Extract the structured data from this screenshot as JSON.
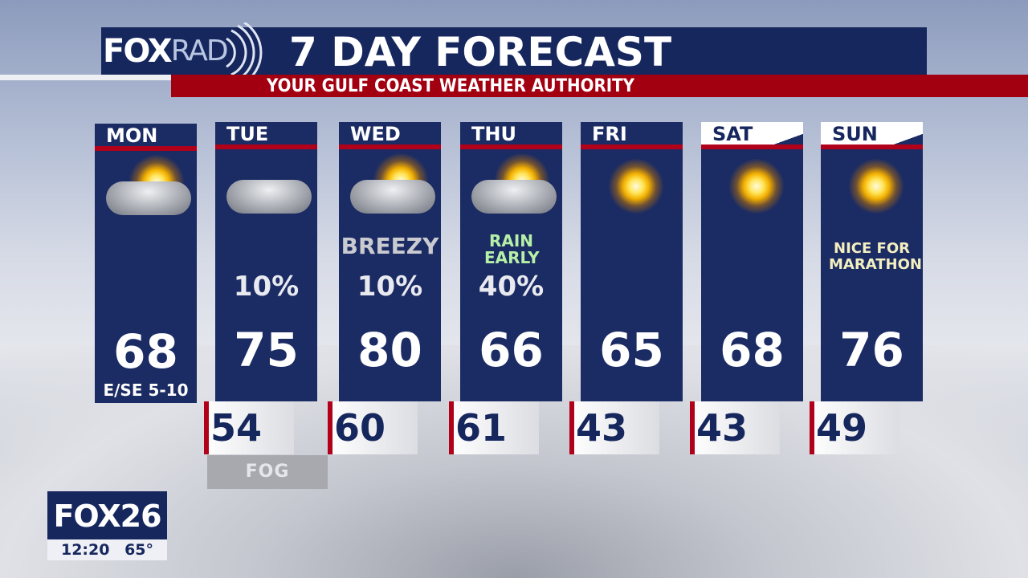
{
  "header": {
    "logo": "FOXRAD",
    "logo_fox": "FOX",
    "logo_rad": "RAD",
    "title": "7 DAY FORECAST",
    "subtitle": "YOUR GULF COAST WEATHER AUTHORITY"
  },
  "colors": {
    "navy": "#1b2b63",
    "red": "#b0001a",
    "note_green": "#b6f0a8",
    "note_gray": "#c9cbd0",
    "note_yellow": "#f3efc0"
  },
  "days": [
    {
      "label": "MON",
      "icon": "partly-cloudy-icon",
      "high": "68",
      "low": null,
      "precip": null,
      "note": null,
      "wind": "E/SE 5-10"
    },
    {
      "label": "TUE",
      "icon": "cloudy-icon",
      "high": "75",
      "low": "54",
      "precip": "10%",
      "note": null,
      "below": "FOG"
    },
    {
      "label": "WED",
      "icon": "partly-cloudy-storm-icon",
      "high": "80",
      "low": "60",
      "precip": "10%",
      "note": "BREEZY"
    },
    {
      "label": "THU",
      "icon": "partly-cloudy-icon",
      "high": "66",
      "low": "61",
      "precip": "40%",
      "note": "RAIN EARLY"
    },
    {
      "label": "FRI",
      "icon": "sunny-icon",
      "high": "65",
      "low": "43",
      "precip": null,
      "note": null
    },
    {
      "label": "SAT",
      "icon": "sunny-icon",
      "high": "68",
      "low": "43",
      "precip": null,
      "note": null
    },
    {
      "label": "SUN",
      "icon": "mostly-sunny-icon",
      "high": "76",
      "low": "49",
      "precip": null,
      "note": "NICE FOR MARATHON"
    }
  ],
  "station_bug": {
    "logo": "FOX26",
    "time": "12:20",
    "temp": "65°"
  }
}
